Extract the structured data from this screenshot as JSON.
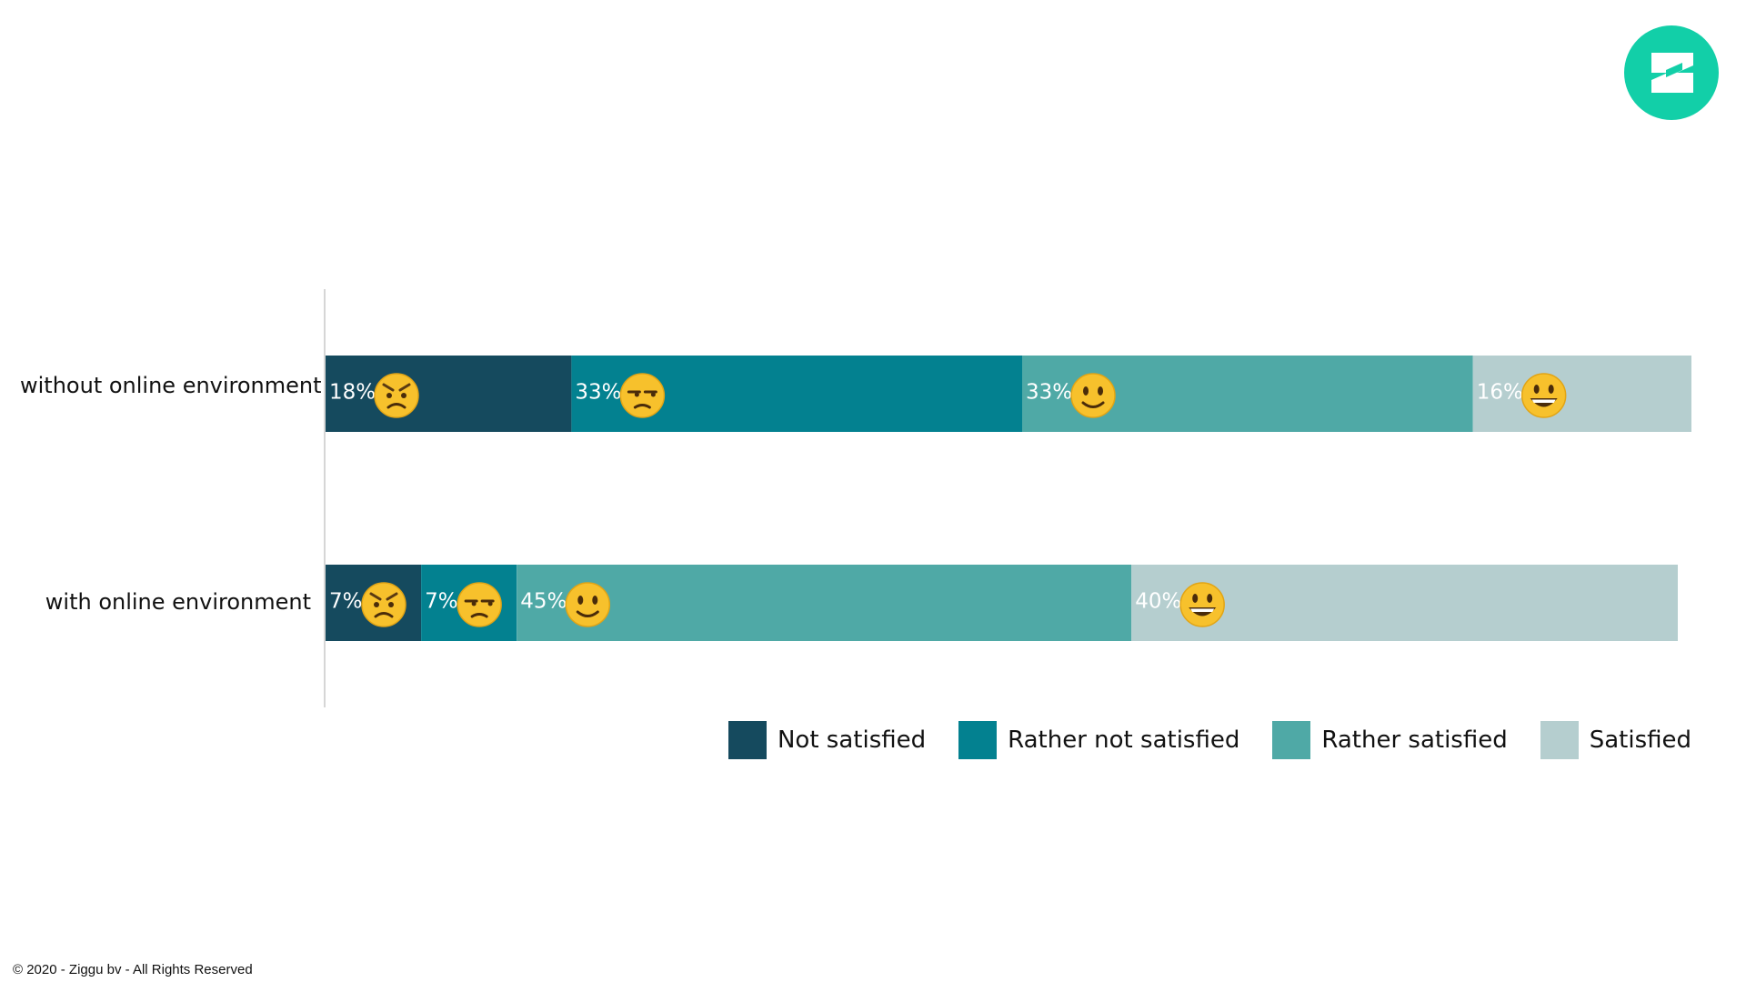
{
  "brand": {
    "logo_color": "#12cfa8"
  },
  "footer": {
    "text": "© 2020 - Ziggu bv - All Rights Reserved"
  },
  "chart_data": {
    "type": "bar",
    "orientation": "horizontal",
    "stacked": true,
    "xlim": [
      0,
      100
    ],
    "grid": false,
    "categories": [
      "without online environment",
      "with online environment"
    ],
    "series": [
      {
        "name": "Not satisfied",
        "color": "#154a5e",
        "icon": "angry-face-icon",
        "values": [
          18,
          7
        ],
        "labels": [
          "18%",
          "7%"
        ]
      },
      {
        "name": "Rather not satisfied",
        "color": "#038190",
        "icon": "unamused-face-icon",
        "values": [
          33,
          7
        ],
        "labels": [
          "33%",
          "7%"
        ]
      },
      {
        "name": "Rather satisfied",
        "color": "#4fa9a6",
        "icon": "slightly-smiling-face-icon",
        "values": [
          33,
          45
        ],
        "labels": [
          "33%",
          "45%"
        ]
      },
      {
        "name": "Satisfied",
        "color": "#b5cecf",
        "icon": "grinning-face-icon",
        "values": [
          16,
          40
        ],
        "labels": [
          "16%",
          "40%"
        ]
      }
    ],
    "legend_position": "bottom-right"
  }
}
